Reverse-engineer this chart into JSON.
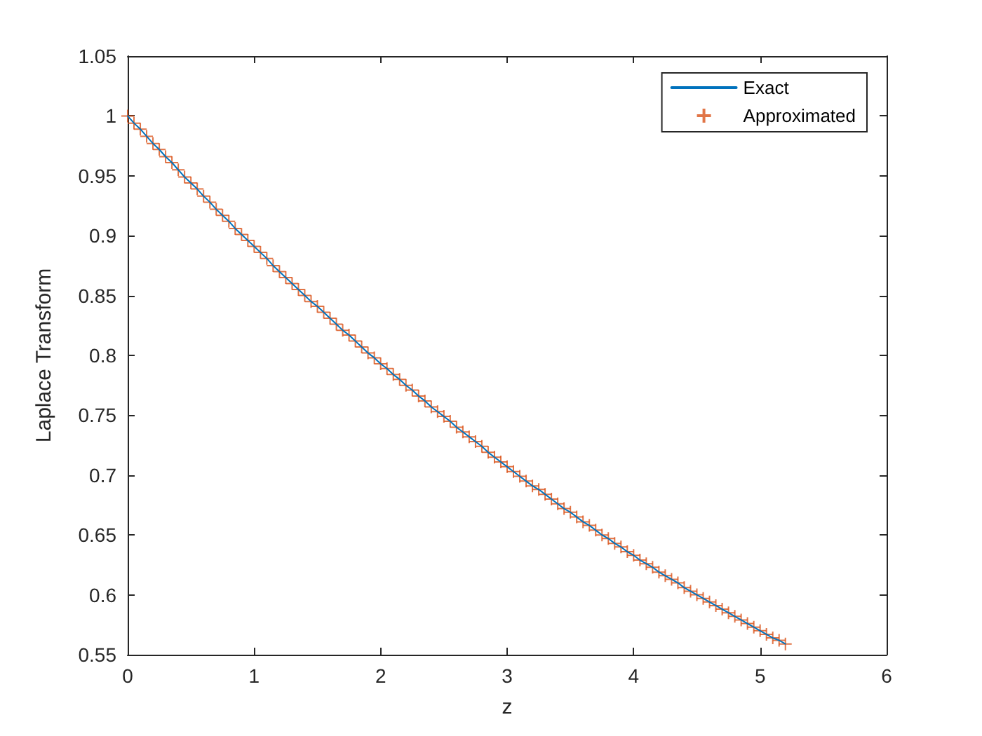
{
  "chart_data": {
    "type": "line",
    "xlabel": "z",
    "ylabel": "Laplace Transform",
    "x": [
      0,
      0.05,
      0.1,
      0.15,
      0.2,
      0.25,
      0.3,
      0.35,
      0.4,
      0.45,
      0.5,
      0.55,
      0.6,
      0.65,
      0.7,
      0.75,
      0.8,
      0.85,
      0.9,
      0.95,
      1,
      1.05,
      1.1,
      1.15,
      1.2,
      1.25,
      1.3,
      1.35,
      1.4,
      1.45,
      1.5,
      1.55,
      1.6,
      1.65,
      1.7,
      1.75,
      1.8,
      1.85,
      1.9,
      1.95,
      2,
      2.05,
      2.1,
      2.15,
      2.2,
      2.25,
      2.3,
      2.35,
      2.4,
      2.45,
      2.5,
      2.55,
      2.6,
      2.65,
      2.7,
      2.75,
      2.8,
      2.85,
      2.9,
      2.95,
      3,
      3.05,
      3.1,
      3.15,
      3.2,
      3.25,
      3.3,
      3.35,
      3.4,
      3.45,
      3.5,
      3.55,
      3.6,
      3.65,
      3.7,
      3.75,
      3.8,
      3.85,
      3.9,
      3.95,
      4,
      4.05,
      4.1,
      4.15,
      4.2,
      4.25,
      4.3,
      4.35,
      4.4,
      4.45,
      4.5,
      4.55,
      4.6,
      4.65,
      4.7,
      4.75,
      4.8,
      4.85,
      4.9,
      4.95,
      5,
      5.05,
      5.1,
      5.15,
      5.2
    ],
    "series": [
      {
        "name": "Exact",
        "marker": "none",
        "color": "#0072bd",
        "values": [
          1.0,
          0.994,
          0.989,
          0.983,
          0.977,
          0.972,
          0.966,
          0.961,
          0.955,
          0.949,
          0.944,
          0.939,
          0.933,
          0.928,
          0.922,
          0.917,
          0.912,
          0.906,
          0.901,
          0.896,
          0.891,
          0.886,
          0.881,
          0.875,
          0.87,
          0.865,
          0.86,
          0.855,
          0.85,
          0.845,
          0.841,
          0.836,
          0.831,
          0.826,
          0.821,
          0.817,
          0.812,
          0.807,
          0.802,
          0.798,
          0.793,
          0.789,
          0.784,
          0.78,
          0.775,
          0.771,
          0.766,
          0.762,
          0.757,
          0.753,
          0.749,
          0.745,
          0.74,
          0.736,
          0.732,
          0.728,
          0.724,
          0.719,
          0.715,
          0.711,
          0.707,
          0.703,
          0.699,
          0.695,
          0.691,
          0.688,
          0.684,
          0.68,
          0.676,
          0.672,
          0.669,
          0.665,
          0.661,
          0.658,
          0.654,
          0.65,
          0.647,
          0.643,
          0.64,
          0.636,
          0.633,
          0.629,
          0.626,
          0.623,
          0.619,
          0.616,
          0.613,
          0.61,
          0.606,
          0.603,
          0.6,
          0.597,
          0.594,
          0.591,
          0.588,
          0.585,
          0.582,
          0.579,
          0.576,
          0.573,
          0.57,
          0.567,
          0.564,
          0.562,
          0.559
        ]
      },
      {
        "name": "Approximated",
        "type": "scatter",
        "marker": "cross",
        "color": "#d95319",
        "values": [
          1.0,
          0.994,
          0.989,
          0.983,
          0.977,
          0.972,
          0.966,
          0.961,
          0.955,
          0.949,
          0.944,
          0.939,
          0.933,
          0.928,
          0.922,
          0.917,
          0.912,
          0.906,
          0.901,
          0.896,
          0.891,
          0.886,
          0.881,
          0.875,
          0.87,
          0.865,
          0.86,
          0.855,
          0.85,
          0.845,
          0.841,
          0.836,
          0.831,
          0.826,
          0.821,
          0.817,
          0.812,
          0.807,
          0.802,
          0.798,
          0.793,
          0.789,
          0.784,
          0.78,
          0.775,
          0.771,
          0.766,
          0.762,
          0.757,
          0.753,
          0.749,
          0.745,
          0.74,
          0.736,
          0.732,
          0.728,
          0.724,
          0.719,
          0.715,
          0.711,
          0.707,
          0.703,
          0.699,
          0.695,
          0.691,
          0.688,
          0.684,
          0.68,
          0.676,
          0.672,
          0.669,
          0.665,
          0.661,
          0.658,
          0.654,
          0.65,
          0.647,
          0.643,
          0.64,
          0.636,
          0.633,
          0.629,
          0.626,
          0.623,
          0.619,
          0.616,
          0.613,
          0.61,
          0.606,
          0.603,
          0.6,
          0.597,
          0.594,
          0.591,
          0.588,
          0.585,
          0.582,
          0.579,
          0.576,
          0.573,
          0.57,
          0.567,
          0.564,
          0.562,
          0.559
        ]
      }
    ],
    "xlim": [
      0,
      6
    ],
    "xticks": [
      0,
      1,
      2,
      3,
      4,
      5,
      6
    ],
    "ylim": [
      0.55,
      1.05
    ],
    "yticks": [
      0.55,
      0.6,
      0.65,
      0.7,
      0.75,
      0.8,
      0.85,
      0.9,
      0.95,
      1,
      1.05
    ],
    "grid": false,
    "legend": "top right"
  }
}
